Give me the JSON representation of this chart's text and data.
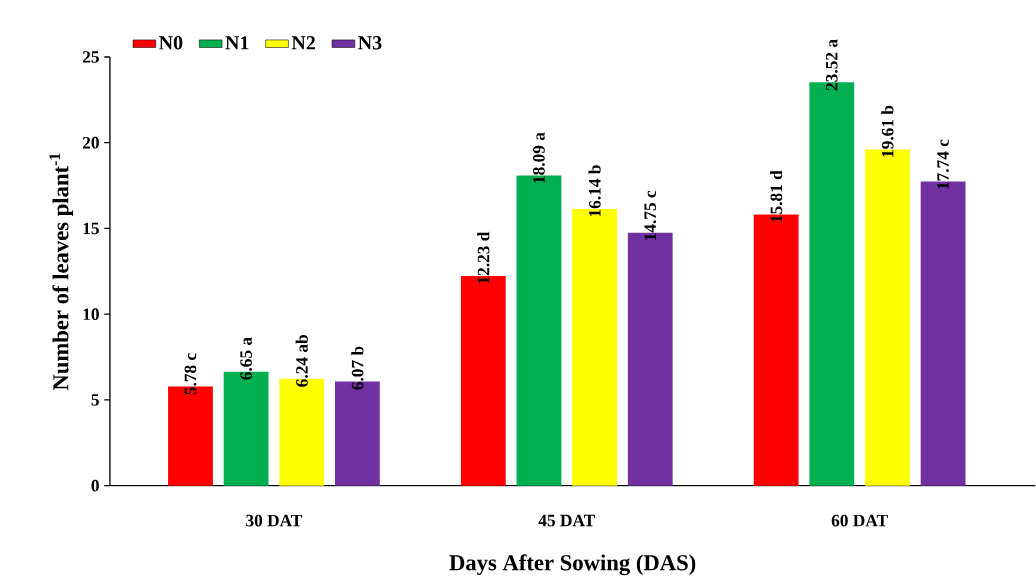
{
  "chart_data": {
    "type": "bar",
    "categories": [
      "30 DAT",
      "45 DAT",
      "60 DAT"
    ],
    "xlabel": "Days After Sowing (DAS)",
    "ylabel": "Number of leaves plant$^{-1}$",
    "ylim": [
      0,
      25
    ],
    "yticks": [
      0,
      5,
      10,
      15,
      20,
      25
    ],
    "legend": "top left",
    "series": [
      {
        "name": "N0",
        "color": "#ff0000",
        "values": [
          5.78,
          12.23,
          15.81
        ],
        "value_labels": [
          "5.78 c",
          "12.23 d",
          "15.81 d"
        ]
      },
      {
        "name": "N1",
        "color": "#00b050",
        "values": [
          6.65,
          18.09,
          23.52
        ],
        "value_labels": [
          "6.65 a",
          "18.09 a",
          "23.52 a"
        ]
      },
      {
        "name": "N2",
        "color": "#ffff00",
        "values": [
          6.24,
          16.14,
          19.61
        ],
        "value_labels": [
          "6.24 ab",
          "16.14 b",
          "19.61 b"
        ]
      },
      {
        "name": "N3",
        "color": "#7030a0",
        "values": [
          6.07,
          14.75,
          17.74
        ],
        "value_labels": [
          "6.07 b",
          "14.75 c",
          "17.74 c"
        ]
      }
    ]
  }
}
